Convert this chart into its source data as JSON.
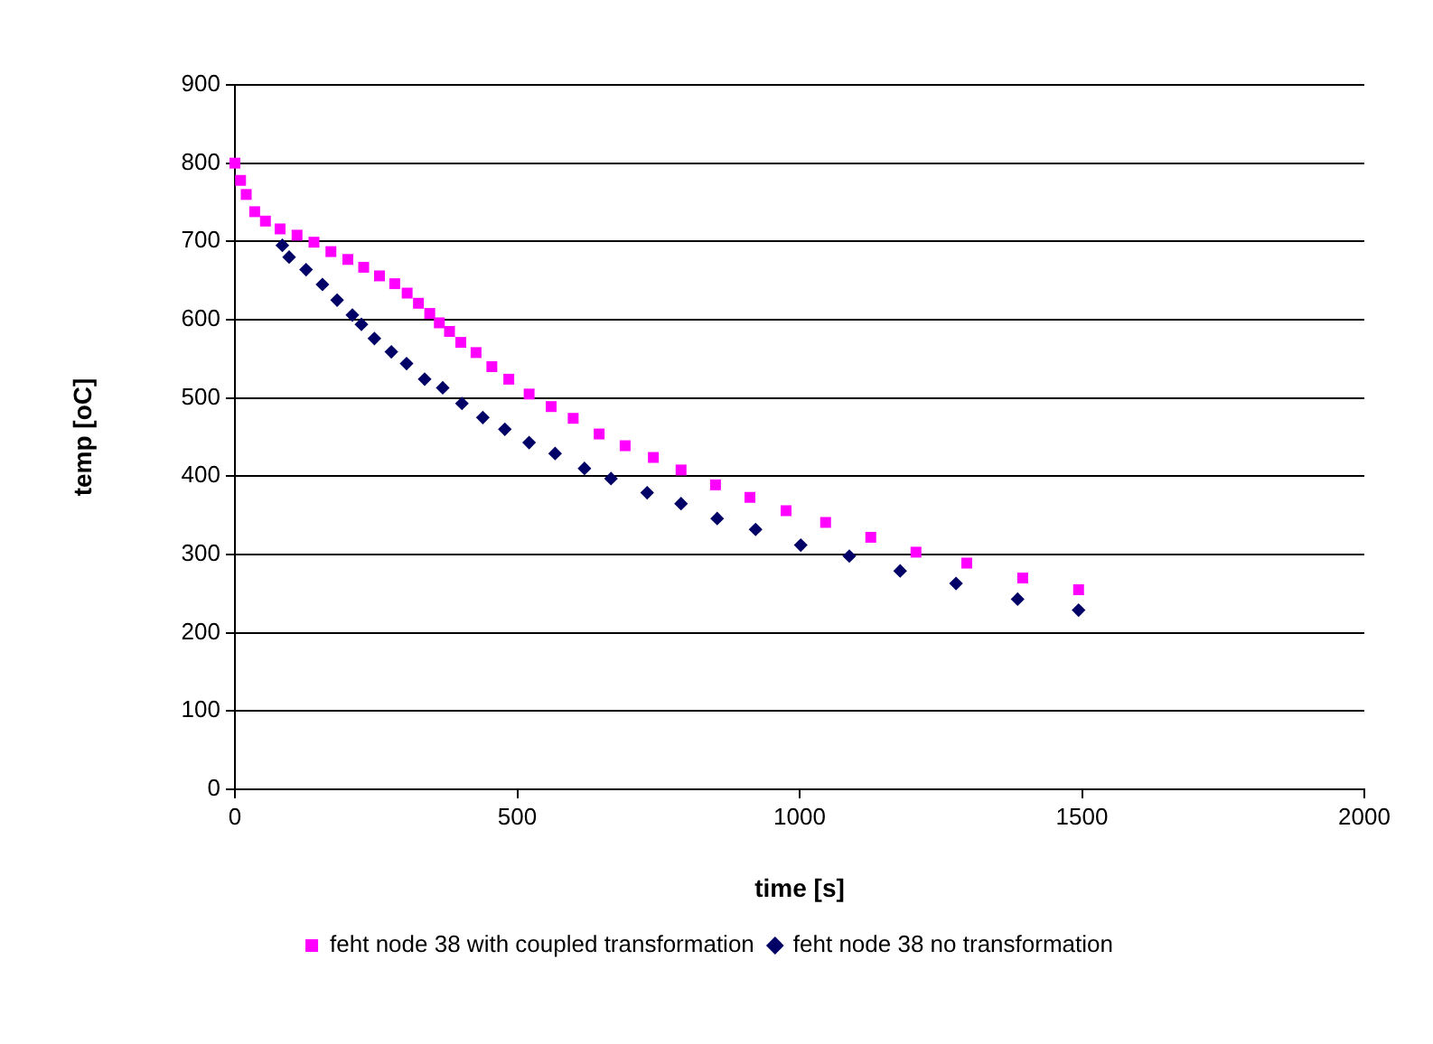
{
  "chart_data": {
    "type": "scatter",
    "xlabel": "time [s]",
    "ylabel": "temp [oC]",
    "xlim": [
      0,
      2000
    ],
    "xticks": [
      0,
      500,
      1000,
      1500,
      2000
    ],
    "ylim": [
      0,
      900
    ],
    "yticks": [
      0,
      100,
      200,
      300,
      400,
      500,
      600,
      700,
      800,
      900
    ],
    "grid": "y",
    "legend": "bottom",
    "series": [
      {
        "name": "feht node 38 no transformation",
        "color": "#000066",
        "marker": "diamond",
        "x": [
          84,
          96,
          126,
          155,
          181,
          208,
          224,
          247,
          277,
          304,
          336,
          368,
          402,
          439,
          478,
          521,
          567,
          619,
          666,
          730,
          790,
          854,
          922,
          1002,
          1088,
          1178,
          1277,
          1386,
          1494
        ],
        "values": [
          695,
          680,
          664,
          645,
          625,
          606,
          594,
          576,
          559,
          544,
          524,
          513,
          493,
          475,
          460,
          443,
          429,
          410,
          397,
          379,
          365,
          346,
          332,
          312,
          298,
          279,
          263,
          243,
          229
        ]
      },
      {
        "name": "feht node 38 with coupled transformation",
        "color": "#ff00ff",
        "marker": "square",
        "x": [
          0,
          10,
          20,
          35,
          54,
          80,
          110,
          140,
          170,
          200,
          228,
          256,
          283,
          305,
          325,
          345,
          362,
          380,
          400,
          427,
          455,
          485,
          521,
          560,
          599,
          645,
          691,
          741,
          790,
          851,
          912,
          976,
          1046,
          1126,
          1206,
          1296,
          1395,
          1494
        ],
        "values": [
          800,
          778,
          760,
          738,
          726,
          716,
          708,
          699,
          687,
          677,
          667,
          656,
          646,
          634,
          621,
          608,
          596,
          585,
          571,
          558,
          540,
          524,
          505,
          489,
          474,
          454,
          439,
          424,
          408,
          389,
          373,
          356,
          341,
          322,
          303,
          289,
          270,
          255
        ]
      }
    ]
  }
}
